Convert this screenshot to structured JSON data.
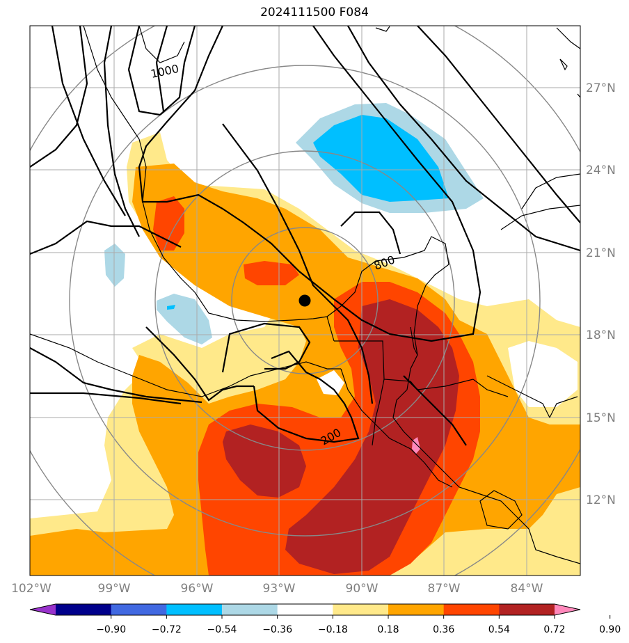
{
  "title": "2024111500 F084",
  "longitude_labels": [
    "102°W",
    "99°W",
    "96°W",
    "93°W",
    "90°W",
    "87°W",
    "84°W"
  ],
  "latitude_labels": [
    "27°N",
    "24°N",
    "21°N",
    "18°N",
    "15°N",
    "12°N"
  ],
  "colorbar": {
    "ticks": [
      "−0.90",
      "−0.72",
      "−0.54",
      "−0.36",
      "−0.18",
      "0.18",
      "0.36",
      "0.54",
      "0.72",
      "0.90"
    ],
    "colors": [
      "#9932cc",
      "#00008b",
      "#4169e1",
      "#00bfff",
      "#add8e6",
      "#ffffff",
      "#ffe98a",
      "#ffa500",
      "#ff4500",
      "#b22222",
      "#ff88bb"
    ]
  },
  "contour_labels": [
    "1000",
    "800",
    "200"
  ],
  "marker": "storm-center"
}
